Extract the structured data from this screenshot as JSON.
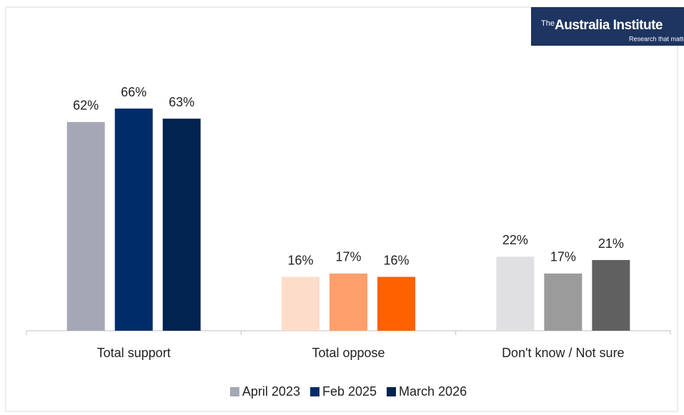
{
  "chart_data": {
    "type": "bar",
    "logo_prefix": "The",
    "logo_name": "Australia Institute",
    "logo_tagline": "Research that matters",
    "categories": [
      "Total support",
      "Total oppose",
      "Don't know / Not sure"
    ],
    "series": [
      {
        "name": "April 2023",
        "color": "#a5a7b5",
        "bar_colors": [
          "#a5a7b5",
          "#fddcca",
          "#e0e0e2"
        ],
        "values": [
          62,
          16,
          22
        ],
        "value_labels": [
          "62%",
          "16%",
          "22%"
        ]
      },
      {
        "name": "Feb 2025",
        "color": "#002d6a",
        "bar_colors": [
          "#002d6a",
          "#ffa06a",
          "#9b9b9b"
        ],
        "values": [
          66,
          17,
          17
        ],
        "value_labels": [
          "66%",
          "17%",
          "17%"
        ]
      },
      {
        "name": "March 2026",
        "color": "#00234f",
        "bar_colors": [
          "#00234f",
          "#ff6000",
          "#606060"
        ],
        "values": [
          63,
          16,
          21
        ],
        "value_labels": [
          "63%",
          "16%",
          "21%"
        ]
      }
    ]
  }
}
